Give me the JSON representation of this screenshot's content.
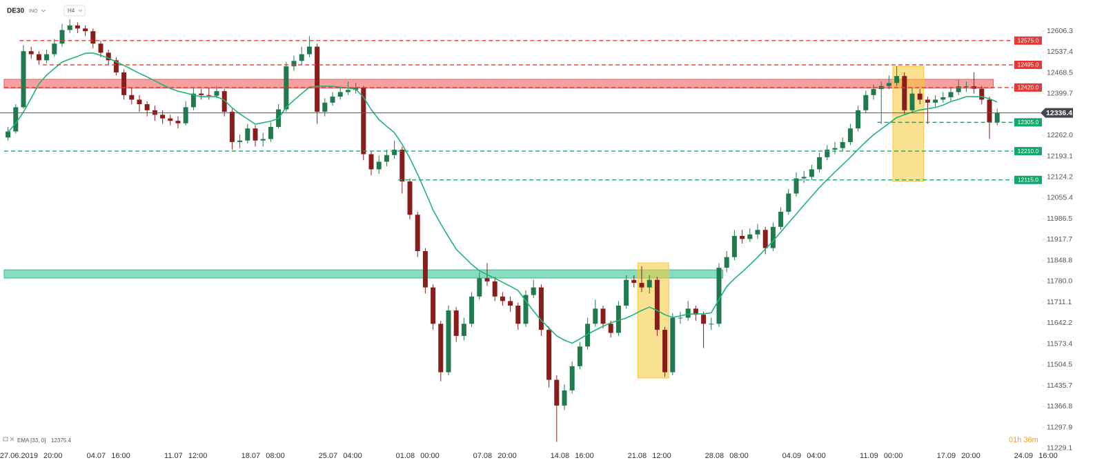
{
  "header": {
    "symbol": "DE30",
    "market": "INO",
    "timeframe": "H4"
  },
  "chart_data": {
    "type": "candlestick",
    "categories": [
      null,
      null,
      null,
      "27.06.2019 20:00",
      null,
      null,
      null,
      null,
      null,
      null,
      null,
      null,
      null,
      "04.07 16:00",
      null,
      null,
      null,
      null,
      null,
      null,
      null,
      null,
      null,
      "11.07 12:00",
      null,
      null,
      null,
      null,
      null,
      null,
      null,
      null,
      null,
      "18.07 08:00",
      null,
      null,
      null,
      null,
      null,
      null,
      null,
      null,
      null,
      "25.07 04:00",
      null,
      null,
      null,
      null,
      null,
      null,
      null,
      null,
      null,
      "01.08 00:00",
      null,
      null,
      null,
      null,
      null,
      null,
      null,
      null,
      null,
      "07.08 20:00",
      null,
      null,
      null,
      null,
      null,
      null,
      null,
      null,
      null,
      "14.08 16:00",
      null,
      null,
      null,
      null,
      null,
      null,
      null,
      null,
      null,
      "21.08 12:00",
      null,
      null,
      null,
      null,
      null,
      null,
      null,
      null,
      null,
      "28.08 08:00",
      null,
      null,
      null,
      null,
      null,
      null,
      null,
      null,
      null,
      "04.09 04:00",
      null,
      null,
      null,
      null,
      null,
      null,
      null,
      null,
      null,
      "11.09 00:00",
      null,
      null,
      null,
      null,
      null,
      null,
      null,
      null,
      null,
      "17.09 20:00",
      null,
      null,
      null,
      null,
      null,
      null,
      null,
      null,
      null,
      "24.09 16:00"
    ],
    "open": [
      12255,
      12275,
      12355,
      12540,
      12530,
      12510,
      12530,
      12565,
      12610,
      12625,
      12615,
      12606,
      12565,
      12535,
      12510,
      12470,
      12395,
      12380,
      12365,
      12345,
      12330,
      12318,
      12310,
      12302,
      12355,
      12400,
      12395,
      12393,
      12408,
      12340,
      12240,
      12245,
      12285,
      12245,
      12250,
      12290,
      12348,
      12490,
      12508,
      12530,
      12555,
      12340,
      12370,
      12390,
      12405,
      12412,
      12420,
      12200,
      12150,
      12175,
      12197,
      12215,
      12110,
      12000,
      11880,
      11760,
      11640,
      11480,
      11684,
      11600,
      11640,
      11730,
      11790,
      11780,
      11730,
      11715,
      11700,
      11640,
      11735,
      11760,
      11620,
      11455,
      11370,
      11420,
      11500,
      11565,
      11640,
      11690,
      11640,
      11610,
      11700,
      11785,
      11775,
      11760,
      11785,
      11620,
      11480,
      11660,
      11660,
      11690,
      11670,
      11640,
      11640,
      11825,
      11860,
      11930,
      11920,
      11935,
      11950,
      11890,
      11960,
      12010,
      12070,
      12120,
      12125,
      12150,
      12190,
      12215,
      12220,
      12240,
      12285,
      12345,
      12395,
      12415,
      12425,
      12435,
      12458,
      12345,
      12400,
      12380,
      12370,
      12380,
      12388,
      12405,
      12424,
      12424,
      12416,
      12380,
      12305,
      null,
      null,
      null,
      null,
      null
    ],
    "high": [
      12290,
      12365,
      12560,
      12555,
      12540,
      12545,
      12580,
      12630,
      12645,
      12635,
      12625,
      12615,
      12575,
      12545,
      12520,
      12480,
      12420,
      12395,
      12375,
      12360,
      12345,
      12330,
      12325,
      12375,
      12420,
      12415,
      12420,
      12425,
      12415,
      12350,
      12265,
      12300,
      12295,
      12270,
      12305,
      12365,
      12505,
      12525,
      12555,
      12590,
      12565,
      12385,
      12405,
      12420,
      12440,
      12435,
      12425,
      12210,
      12195,
      12215,
      12245,
      12225,
      12120,
      12010,
      11890,
      11770,
      11650,
      11700,
      11695,
      11660,
      11745,
      11810,
      11840,
      11795,
      11745,
      11730,
      11710,
      11750,
      11785,
      11770,
      11630,
      11470,
      11440,
      11515,
      11580,
      11660,
      11720,
      11700,
      11650,
      11715,
      11800,
      11800,
      11830,
      11800,
      11795,
      11630,
      11675,
      11680,
      11715,
      11700,
      11680,
      11660,
      11840,
      11880,
      11950,
      11950,
      11955,
      11970,
      11960,
      11975,
      12025,
      12085,
      12140,
      12145,
      12165,
      12205,
      12230,
      12240,
      12255,
      12300,
      12360,
      12410,
      12430,
      12440,
      12460,
      12490,
      12470,
      12420,
      12415,
      12390,
      12395,
      12405,
      12420,
      12445,
      12440,
      12470,
      12425,
      12390,
      12350,
      null,
      null,
      null,
      null,
      null
    ],
    "low": [
      12245,
      12268,
      12350,
      12515,
      12495,
      12500,
      12522,
      12555,
      12600,
      12600,
      12590,
      12550,
      12520,
      12495,
      12460,
      12380,
      12365,
      12340,
      12325,
      12310,
      12300,
      12295,
      12285,
      12295,
      12345,
      12380,
      12380,
      12385,
      12325,
      12215,
      12220,
      12235,
      12225,
      12225,
      12240,
      12285,
      12340,
      12475,
      12495,
      12520,
      12300,
      12325,
      12360,
      12380,
      12395,
      12400,
      12180,
      12130,
      12135,
      12160,
      12185,
      12070,
      11985,
      11860,
      11740,
      11620,
      11450,
      11470,
      11580,
      11585,
      11630,
      11720,
      11765,
      11715,
      11700,
      11680,
      11620,
      11630,
      11725,
      11600,
      11430,
      11250,
      11355,
      11410,
      11490,
      11555,
      11630,
      11625,
      11595,
      11600,
      11690,
      11760,
      11745,
      11740,
      11600,
      11465,
      11470,
      11640,
      11650,
      11650,
      11560,
      11620,
      11630,
      11810,
      11850,
      11905,
      11910,
      11920,
      11870,
      11880,
      11950,
      12000,
      12060,
      12105,
      12115,
      12140,
      12180,
      12200,
      12210,
      12230,
      12275,
      12335,
      12380,
      12300,
      12415,
      12425,
      12330,
      12335,
      12365,
      12300,
      12355,
      12370,
      12375,
      12395,
      12405,
      12400,
      12365,
      12250,
      12295,
      null,
      null,
      null,
      null,
      null
    ],
    "close": [
      12275,
      12355,
      12540,
      12530,
      12510,
      12530,
      12565,
      12610,
      12625,
      12615,
      12606,
      12565,
      12535,
      12510,
      12470,
      12395,
      12380,
      12365,
      12345,
      12330,
      12318,
      12310,
      12302,
      12355,
      12400,
      12395,
      12393,
      12408,
      12340,
      12240,
      12245,
      12285,
      12245,
      12250,
      12290,
      12348,
      12490,
      12508,
      12530,
      12555,
      12340,
      12370,
      12390,
      12405,
      12412,
      12420,
      12200,
      12150,
      12175,
      12197,
      12215,
      12110,
      12000,
      11880,
      11760,
      11640,
      11480,
      11684,
      11600,
      11640,
      11730,
      11790,
      11780,
      11730,
      11715,
      11700,
      11640,
      11735,
      11760,
      11620,
      11455,
      11370,
      11420,
      11500,
      11565,
      11640,
      11690,
      11640,
      11610,
      11700,
      11785,
      11775,
      11760,
      11785,
      11620,
      11480,
      11660,
      11660,
      11690,
      11670,
      11640,
      11640,
      11825,
      11860,
      11930,
      11920,
      11935,
      11950,
      11890,
      11960,
      12010,
      12070,
      12120,
      12125,
      12150,
      12190,
      12215,
      12220,
      12240,
      12285,
      12345,
      12395,
      12415,
      12425,
      12435,
      12458,
      12345,
      12400,
      12380,
      12370,
      12380,
      12388,
      12405,
      12424,
      12424,
      12416,
      12380,
      12305,
      12336.4,
      null,
      null,
      null,
      null,
      null
    ],
    "up_color": "#1f7a4d",
    "down_color": "#8b1c1c",
    "ema": {
      "label": "EMA [33, 0]",
      "value": 12375.4,
      "color": "#1db574",
      "values": [
        12272,
        12302,
        12339,
        12385,
        12432,
        12461,
        12483,
        12504,
        12514,
        12523,
        12533,
        12534,
        12526,
        12517,
        12505,
        12493,
        12480,
        12467,
        12455,
        12442,
        12429,
        12417,
        12408,
        12402,
        12395,
        12390,
        12390,
        12390,
        12378,
        12353,
        12333,
        12316,
        12299,
        12304,
        12309,
        12318,
        12355,
        12378,
        12400,
        12421,
        12424,
        12424,
        12424,
        12421,
        12418,
        12414,
        12388,
        12347,
        12314,
        12292,
        12271,
        12233,
        12187,
        12134,
        12076,
        12016,
        11970,
        11927,
        11886,
        11861,
        11836,
        11815,
        11802,
        11790,
        11777,
        11764,
        11750,
        11716,
        11682,
        11651,
        11626,
        11600,
        11586,
        11576,
        11590,
        11606,
        11619,
        11632,
        11643,
        11651,
        11659,
        11671,
        11684,
        11695,
        11684,
        11670,
        11661,
        11666,
        11672,
        11673,
        11673,
        11676,
        11720,
        11763,
        11789,
        11811,
        11835,
        11860,
        11887,
        11913,
        11943,
        11973,
        12002,
        12032,
        12061,
        12090,
        12116,
        12141,
        12165,
        12190,
        12216,
        12241,
        12264,
        12283,
        12302,
        12321,
        12330,
        12339,
        12346,
        12350,
        12354,
        12362,
        12374,
        12381,
        12390,
        12390,
        12390,
        12383,
        12372,
        null,
        null,
        null,
        null,
        null
      ]
    },
    "last_price": {
      "value": 12336.4,
      "color": "#434651"
    },
    "levels": [
      {
        "price": 12575,
        "label": "12575.0",
        "color": "#e53935",
        "start_index": 2
      },
      {
        "price": 12495,
        "label": "12495.0",
        "color": "#e53935",
        "start_index": 5
      },
      {
        "price": 12420,
        "label": "12420.0",
        "color": "#e53935",
        "start_index": 0
      },
      {
        "price": 12305,
        "label": "12305.0",
        "color": "#13a86b",
        "start_index": 113
      },
      {
        "price": 12210,
        "label": "12210.0",
        "color": "#13a86b",
        "start_index": 0
      },
      {
        "price": 12115,
        "label": "12115.0",
        "color": "#13a86b",
        "start_index": 51
      }
    ],
    "zones": [
      {
        "low": 12418,
        "high": 12447,
        "color": "#ef5350",
        "start_index": 0,
        "end_index": 127
      },
      {
        "low": 11791,
        "high": 11818,
        "color": "#26c08a",
        "start_index": 0,
        "end_index": 92
      },
      {
        "low": 11461,
        "high": 11841,
        "color": "#f6c836",
        "start_index": 82,
        "end_index": 85
      },
      {
        "low": 12110,
        "high": 12490,
        "color": "#f6c836",
        "start_index": 115,
        "end_index": 118
      }
    ],
    "ylim": [
      11224,
      12709
    ],
    "yticks": [
      12606.3,
      12537.4,
      12468.5,
      12399.7,
      {
        "value": 12262,
        "label": "12262.0"
      },
      12193.1,
      12124.2,
      12055.4,
      11986.5,
      11917.7,
      11848.8,
      {
        "value": 11780,
        "label": "11780.0"
      },
      11711.1,
      11642.2,
      11573.4,
      11504.5,
      11435.7,
      11366.8,
      11297.9,
      11229.1
    ],
    "countdown": "01h 36m"
  }
}
